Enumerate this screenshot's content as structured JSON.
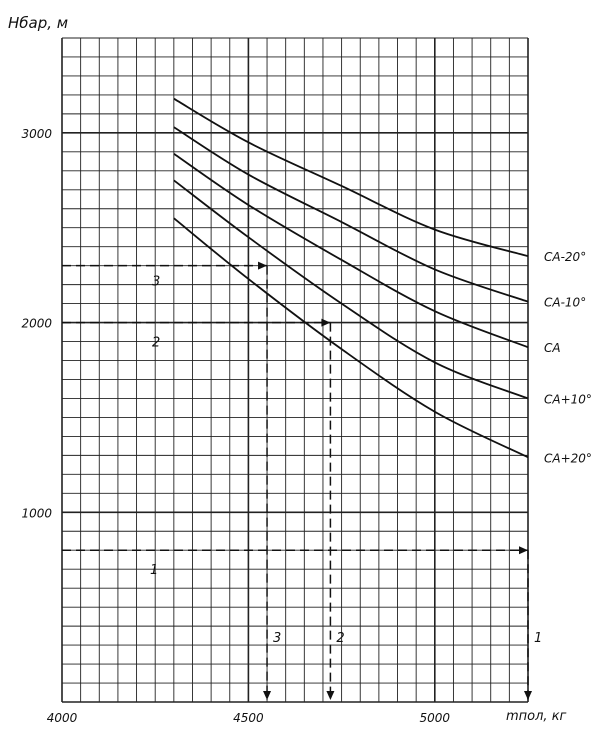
{
  "chart_data": {
    "type": "line",
    "ylabel": "Hбар, м",
    "xlabel": "mпол, кг",
    "xlim": [
      4000,
      5250
    ],
    "ylim": [
      0,
      3500
    ],
    "x_ticks": [
      "4000",
      "4500",
      "5000"
    ],
    "y_ticks": [
      "1000",
      "2000",
      "3000"
    ],
    "grid": true,
    "series": [
      {
        "name": "CA-20°",
        "x": [
          4300,
          4500,
          4750,
          5000,
          5250
        ],
        "y": [
          3180,
          2950,
          2720,
          2490,
          2350
        ]
      },
      {
        "name": "CA-10°",
        "x": [
          4300,
          4500,
          4750,
          5000,
          5250
        ],
        "y": [
          3030,
          2780,
          2530,
          2280,
          2110
        ]
      },
      {
        "name": "CA",
        "x": [
          4300,
          4500,
          4750,
          5000,
          5250
        ],
        "y": [
          2890,
          2620,
          2330,
          2060,
          1870
        ]
      },
      {
        "name": "CA+10°",
        "x": [
          4300,
          4500,
          4750,
          5000,
          5250
        ],
        "y": [
          2750,
          2450,
          2100,
          1790,
          1600
        ]
      },
      {
        "name": "CA+20°",
        "x": [
          4300,
          4500,
          4750,
          5000,
          5250
        ],
        "y": [
          2550,
          2230,
          1860,
          1530,
          1290
        ]
      }
    ],
    "annotations": [
      {
        "label": "1",
        "y": 800,
        "x_end": 5250
      },
      {
        "label": "2",
        "y": 2000,
        "x_end": 4720
      },
      {
        "label": "3",
        "y": 2300,
        "x_end": 4550
      }
    ]
  }
}
